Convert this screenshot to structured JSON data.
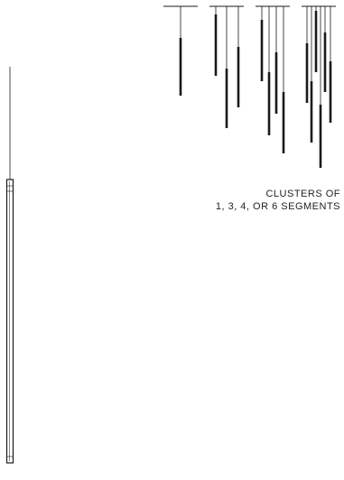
{
  "caption": {
    "line1": "CLUSTERS OF",
    "line2": "1, 3, 4, OR 6 SEGMENTS"
  },
  "colors": {
    "line": "#1a1a1a",
    "background": "#ffffff"
  },
  "clusters": [
    {
      "segments": 1
    },
    {
      "segments": 3
    },
    {
      "segments": 4
    },
    {
      "segments": 6
    }
  ]
}
